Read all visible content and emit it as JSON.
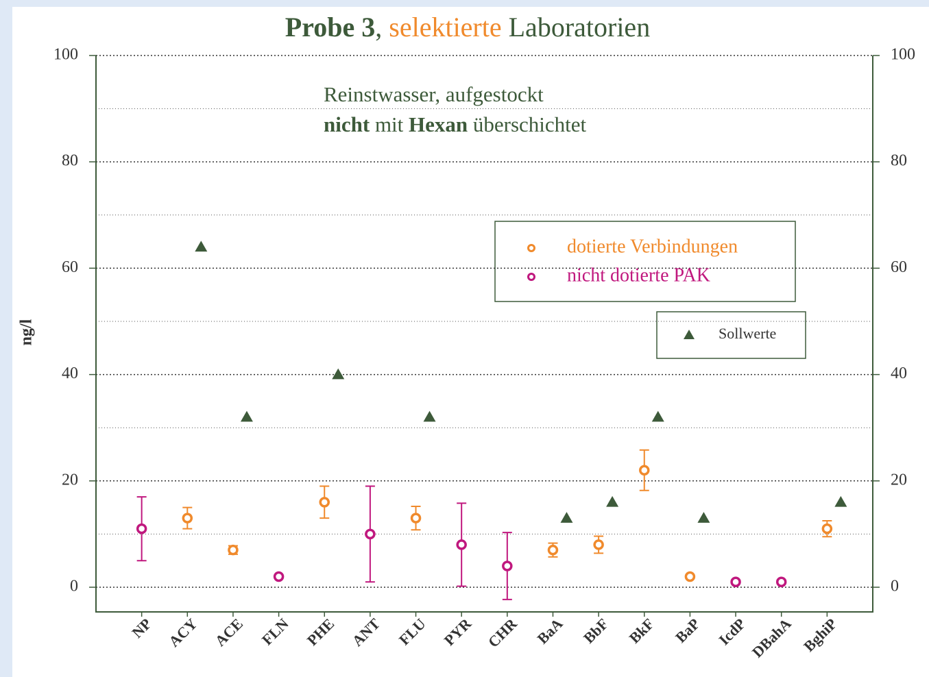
{
  "chart_data": {
    "type": "errorbar",
    "title": [
      "Probe 3",
      ", ",
      "selektierte",
      " Laboratorien"
    ],
    "annotation": [
      [
        "Reinstwasser, aufgestockt"
      ],
      [
        "nicht",
        " mit ",
        "Hexan",
        " überschichtet"
      ]
    ],
    "y_label": "ng/l",
    "categories": [
      "NP",
      "ACY",
      "ACE",
      "FLN",
      "PHE",
      "ANT",
      "FLU",
      "PYR",
      "CHR",
      "BaA",
      "BbF",
      "BkF",
      "BaP",
      "IcdP",
      "DBahA",
      "BghiP"
    ],
    "series": [
      {
        "name": "dotierte Verbindungen",
        "color": "#f08a2c",
        "marker": "circle",
        "values": [
          null,
          13,
          7,
          null,
          16,
          null,
          13,
          null,
          null,
          7,
          8,
          22,
          2,
          null,
          null,
          11
        ],
        "errors": [
          null,
          2,
          0.8,
          null,
          3,
          null,
          2.2,
          null,
          null,
          1.3,
          1.6,
          3.8,
          0.3,
          null,
          null,
          1.5
        ]
      },
      {
        "name": "nicht dotierte PAK",
        "color": "#c0187e",
        "marker": "circle",
        "values": [
          11,
          null,
          null,
          2,
          null,
          10,
          null,
          8,
          4,
          null,
          null,
          null,
          null,
          1,
          1,
          null
        ],
        "errors": [
          6,
          null,
          null,
          0.3,
          null,
          9,
          null,
          7.8,
          6.3,
          null,
          null,
          null,
          null,
          0.3,
          0.3,
          null
        ]
      },
      {
        "name": "Sollwerte",
        "color": "#3d5a3a",
        "marker": "triangle",
        "values": [
          null,
          64,
          32,
          null,
          40,
          null,
          32,
          null,
          null,
          13,
          16,
          32,
          13,
          null,
          null,
          16
        ]
      }
    ],
    "ylim": [
      0,
      100
    ],
    "yticks": [
      0,
      20,
      40,
      60,
      80,
      100
    ],
    "yminor": [
      10,
      30,
      50,
      70,
      90
    ],
    "grid": true,
    "axis_color": "#3d5a3a"
  }
}
